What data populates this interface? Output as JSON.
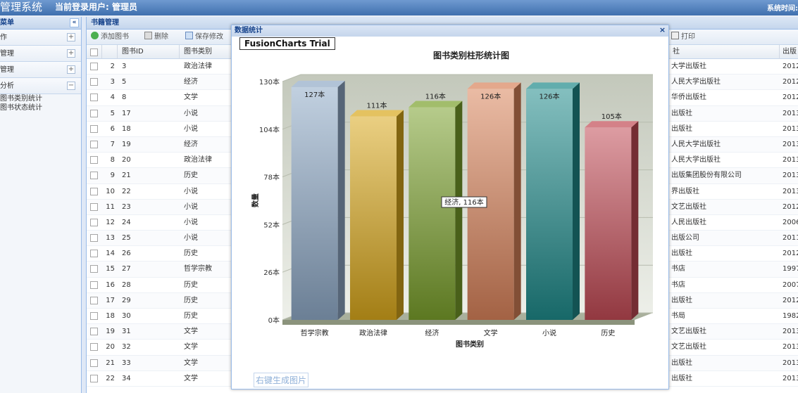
{
  "header": {
    "title": "管理系统",
    "user_label": "当前登录用户: 管理员",
    "system_time_label": "系统时间:"
  },
  "sidebar": {
    "title": "菜单",
    "collapse": "«",
    "groups": [
      {
        "label": "作",
        "toggle": "+"
      },
      {
        "label": "管理",
        "toggle": "+"
      },
      {
        "label": "管理",
        "toggle": "+"
      },
      {
        "label": "分析",
        "toggle": "−"
      }
    ],
    "subitems": [
      "图书类别统计",
      "图书状态统计"
    ]
  },
  "main": {
    "title": "书籍管理",
    "toolbar": {
      "add": "添加图书",
      "delete": "删除",
      "save": "保存修改",
      "print": "打印"
    },
    "columns": {
      "id": "图书ID",
      "category": "图书类别",
      "publisher": "社",
      "year": "出版"
    },
    "rows": [
      {
        "n": "2",
        "id": "3",
        "cat": "政治法律",
        "pub": "大学出版社",
        "year": "2012"
      },
      {
        "n": "3",
        "id": "5",
        "cat": "经济",
        "pub": "人民大学出版社",
        "year": "2012"
      },
      {
        "n": "4",
        "id": "8",
        "cat": "文学",
        "pub": "华侨出版社",
        "year": "2012"
      },
      {
        "n": "5",
        "id": "17",
        "cat": "小说",
        "pub": "出版社",
        "year": "2013"
      },
      {
        "n": "6",
        "id": "18",
        "cat": "小说",
        "pub": "出版社",
        "year": "2013"
      },
      {
        "n": "7",
        "id": "19",
        "cat": "经济",
        "pub": "人民大学出版社",
        "year": "2013"
      },
      {
        "n": "8",
        "id": "20",
        "cat": "政治法律",
        "pub": "人民大学出版社",
        "year": "2013"
      },
      {
        "n": "9",
        "id": "21",
        "cat": "历史",
        "pub": "出版集团股份有限公司",
        "year": "2013"
      },
      {
        "n": "10",
        "id": "22",
        "cat": "小说",
        "pub": "界出版社",
        "year": "2013"
      },
      {
        "n": "11",
        "id": "23",
        "cat": "小说",
        "pub": "文艺出版社",
        "year": "2012"
      },
      {
        "n": "12",
        "id": "24",
        "cat": "小说",
        "pub": "人民出版社",
        "year": "2006"
      },
      {
        "n": "13",
        "id": "25",
        "cat": "小说",
        "pub": "出版公司",
        "year": "2011"
      },
      {
        "n": "14",
        "id": "26",
        "cat": "历史",
        "pub": "出版社",
        "year": "2012"
      },
      {
        "n": "15",
        "id": "27",
        "cat": "哲学宗教",
        "pub": "书店",
        "year": "1997"
      },
      {
        "n": "16",
        "id": "28",
        "cat": "历史",
        "pub": "书店",
        "year": "2007"
      },
      {
        "n": "17",
        "id": "29",
        "cat": "历史",
        "pub": "出版社",
        "year": "2012"
      },
      {
        "n": "18",
        "id": "30",
        "cat": "历史",
        "pub": "书局",
        "year": "1982"
      },
      {
        "n": "19",
        "id": "31",
        "cat": "文学",
        "pub": "文艺出版社",
        "year": "2013"
      },
      {
        "n": "20",
        "id": "32",
        "cat": "文学",
        "pub": "文艺出版社",
        "year": "2013"
      },
      {
        "n": "21",
        "id": "33",
        "cat": "文学",
        "pub": "出版社",
        "year": "2013"
      },
      {
        "n": "22",
        "id": "34",
        "cat": "文学",
        "pub": "出版社",
        "year": "2013"
      }
    ]
  },
  "dialog": {
    "title": "数据统计",
    "close": "×",
    "trial": "FusionCharts Trial",
    "snapshot": "右键生成图片"
  },
  "chart_data": {
    "type": "bar",
    "title": "图书类别柱形统计图",
    "xlabel": "图书类别",
    "ylabel": "数量",
    "categories": [
      "哲学宗教",
      "政治法律",
      "经济",
      "文学",
      "小说",
      "历史"
    ],
    "values": [
      127,
      111,
      116,
      126,
      126,
      105
    ],
    "value_labels": [
      "127本",
      "111本",
      "116本",
      "126本",
      "126本",
      "105本"
    ],
    "yticks": [
      "0本",
      "26本",
      "52本",
      "78本",
      "104本",
      "130本"
    ],
    "ylim": [
      0,
      130
    ],
    "tooltip": "经济, 116本",
    "colors": [
      "#8fa9c6",
      "#d9a81c",
      "#7aa02c",
      "#d9835a",
      "#1f8a8a",
      "#c24b55"
    ]
  }
}
